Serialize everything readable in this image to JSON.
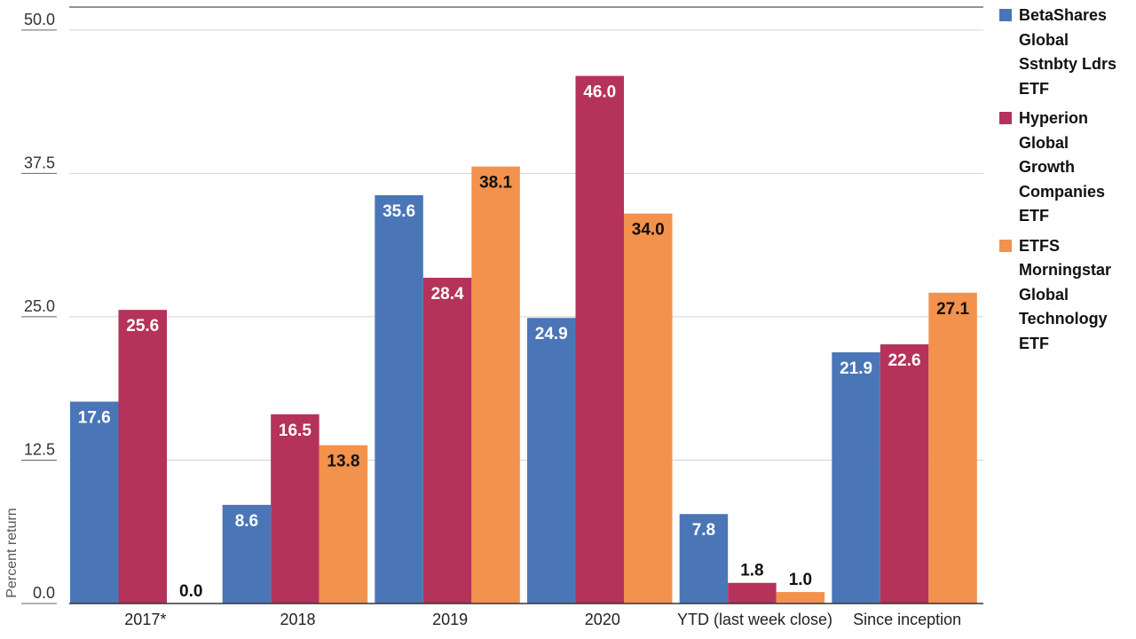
{
  "chart_data": {
    "type": "bar",
    "title": "",
    "xlabel": "",
    "ylabel": "Percent return",
    "ylim": [
      0,
      52
    ],
    "yticks": [
      "0.0",
      "12.5",
      "25.0",
      "37.5",
      "50.0"
    ],
    "ytick_values": [
      0,
      12.5,
      25,
      37.5,
      50
    ],
    "grid": true,
    "legend_position": "top-right",
    "categories": [
      "2017*",
      "2018",
      "2019",
      "2020",
      "YTD (last week close)",
      "Since inception"
    ],
    "series": [
      {
        "name": "BetaShares Global Sstnbty Ldrs ETF",
        "legend_lines": [
          "BetaShares",
          "Global",
          "Sstnbty Ldrs",
          "ETF"
        ],
        "color": "#4a76b8",
        "label_color": "#ffffff",
        "values": [
          17.6,
          8.6,
          35.6,
          24.9,
          7.8,
          21.9
        ],
        "labels": [
          "17.6",
          "8.6",
          "35.6",
          "24.9",
          "7.8",
          "21.9"
        ]
      },
      {
        "name": "Hyperion Global Growth Companies ETF",
        "legend_lines": [
          "Hyperion",
          "Global",
          "Growth",
          "Companies",
          "ETF"
        ],
        "color": "#b5325a",
        "label_color": "#ffffff",
        "values": [
          25.6,
          16.5,
          28.4,
          46.0,
          1.8,
          22.6
        ],
        "labels": [
          "25.6",
          "16.5",
          "28.4",
          "46.0",
          "1.8",
          "22.6"
        ]
      },
      {
        "name": "ETFS Morningstar Global Technology ETF",
        "legend_lines": [
          "ETFS",
          "Morningstar",
          "Global",
          "Technology",
          "ETF"
        ],
        "color": "#f2924c",
        "label_color": "#111111",
        "values": [
          0.0,
          13.8,
          38.1,
          34.0,
          1.0,
          27.1
        ],
        "labels": [
          "0.0",
          "13.8",
          "38.1",
          "34.0",
          "1.0",
          "27.1"
        ]
      }
    ]
  }
}
